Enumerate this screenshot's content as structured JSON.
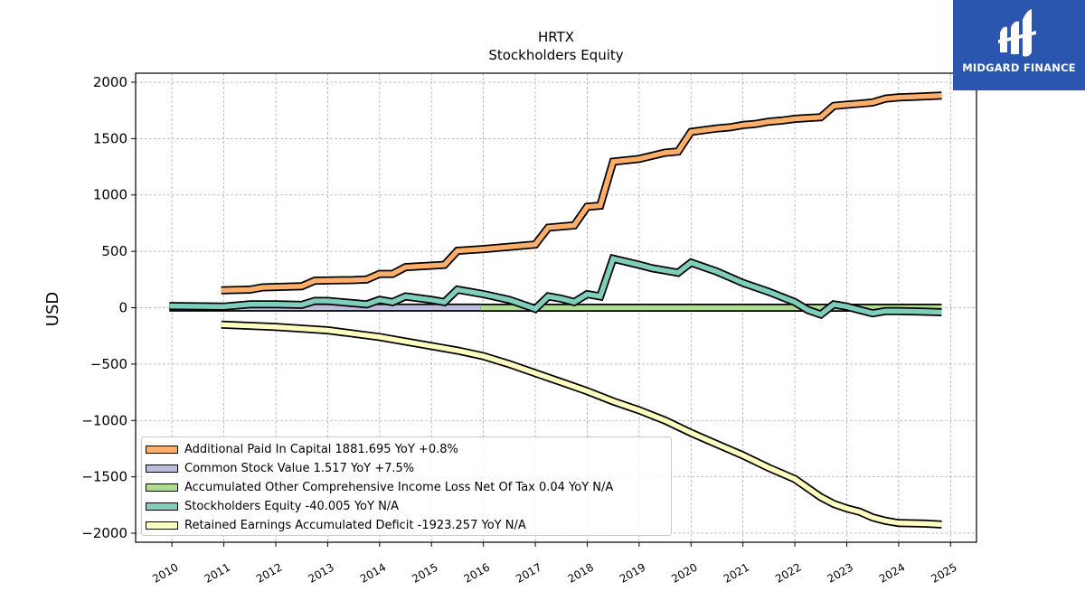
{
  "brand": {
    "name": "MIDGARD FINANCE",
    "logo_icon": "midgard-logo-icon",
    "color": "#2a56b0"
  },
  "chart_data": {
    "type": "line",
    "title": "HRTX",
    "subtitle": "Stockholders  Equity",
    "ylabel": "USD",
    "xlabel": "",
    "ylim": [
      -2080,
      2080
    ],
    "xlim": [
      2009.3,
      2025.5
    ],
    "yticks": [
      2000,
      1500,
      1000,
      500,
      0,
      -500,
      -1000,
      -1500,
      -2000
    ],
    "ytick_labels": [
      "2000",
      "1500",
      "1000",
      "500",
      "0",
      "−500",
      "−1000",
      "−1500",
      "−2000"
    ],
    "xticks": [
      2010,
      2011,
      2012,
      2013,
      2014,
      2015,
      2016,
      2017,
      2018,
      2019,
      2020,
      2021,
      2022,
      2023,
      2024,
      2025
    ],
    "xtick_labels": [
      "2010",
      "2011",
      "2012",
      "2013",
      "2014",
      "2015",
      "2016",
      "2017",
      "2018",
      "2019",
      "2020",
      "2021",
      "2022",
      "2023",
      "2024",
      "2025"
    ],
    "grid": true,
    "legend_position": "lower-left",
    "series": [
      {
        "name": "Additional Paid In Capital",
        "legend_label": "Additional Paid In Capital  1881.695 YoY +0.8%",
        "color": "#fdae6b",
        "x": [
          2010.95,
          2011.5,
          2011.75,
          2012.5,
          2012.75,
          2013.5,
          2013.75,
          2014.0,
          2014.25,
          2014.5,
          2015.25,
          2015.5,
          2016.0,
          2016.5,
          2017.0,
          2017.25,
          2017.75,
          2018.0,
          2018.25,
          2018.5,
          2019.0,
          2019.5,
          2019.75,
          2020.0,
          2020.5,
          2020.75,
          2021.0,
          2021.25,
          2021.5,
          2021.75,
          2022.0,
          2022.5,
          2022.75,
          2023.0,
          2023.25,
          2023.5,
          2023.75,
          2024.0,
          2024.5,
          2024.83
        ],
        "y": [
          155,
          160,
          180,
          190,
          240,
          245,
          250,
          300,
          300,
          360,
          380,
          505,
          520,
          540,
          560,
          710,
          730,
          895,
          905,
          1295,
          1320,
          1375,
          1385,
          1560,
          1590,
          1600,
          1620,
          1630,
          1650,
          1660,
          1675,
          1690,
          1790,
          1800,
          1810,
          1820,
          1855,
          1865,
          1875,
          1881.695
        ]
      },
      {
        "name": "Common Stock Value",
        "legend_label": "Common Stock Value  1.517 YoY +7.5%",
        "color": "#bcbddc",
        "x": [
          2009.95,
          2011.5,
          2012.5,
          2013.5,
          2014.5,
          2015.5,
          2015.95
        ],
        "y": [
          0.5,
          0.7,
          0.8,
          0.9,
          1.0,
          1.1,
          1.2
        ]
      },
      {
        "name": "Accumulated Other Comprehensive Income Loss Net Of Tax",
        "legend_label": "Accumulated Other Comprehensive Income Loss Net Of Tax  0.04 YoY N/A",
        "color": "#addd8e",
        "x": [
          2015.95,
          2018.0,
          2020.0,
          2022.0,
          2024.0,
          2024.83
        ],
        "y": [
          0.0,
          0.02,
          0.05,
          0.03,
          0.04,
          0.04
        ]
      },
      {
        "name": "Stockholders Equity",
        "legend_label": "Stockholders Equity  -40.005 YoY N/A",
        "color": "#7fcdbb",
        "x": [
          2009.95,
          2011.0,
          2011.5,
          2012.0,
          2012.5,
          2012.75,
          2013.0,
          2013.5,
          2013.75,
          2014.0,
          2014.25,
          2014.5,
          2015.0,
          2015.25,
          2015.5,
          2016.0,
          2016.5,
          2017.0,
          2017.25,
          2017.5,
          2017.75,
          2018.0,
          2018.25,
          2018.5,
          2019.0,
          2019.25,
          2019.5,
          2019.75,
          2020.0,
          2020.5,
          2021.0,
          2021.5,
          2022.0,
          2022.25,
          2022.5,
          2022.75,
          2023.0,
          2023.25,
          2023.5,
          2023.75,
          2024.0,
          2024.5,
          2024.83
        ],
        "y": [
          15,
          10,
          30,
          30,
          25,
          60,
          60,
          40,
          30,
          70,
          50,
          100,
          70,
          50,
          160,
          120,
          70,
          -10,
          100,
          80,
          50,
          120,
          100,
          435,
          380,
          350,
          330,
          310,
          400,
          320,
          220,
          140,
          50,
          -20,
          -60,
          30,
          10,
          -20,
          -50,
          -30,
          -30,
          -35,
          -40.005
        ]
      },
      {
        "name": "Retained Earnings Accumulated Deficit",
        "legend_label": "Retained Earnings Accumulated Deficit  -1923.257 YoY N/A",
        "color": "#ffffbf",
        "x": [
          2010.95,
          2012.0,
          2013.0,
          2013.5,
          2014.0,
          2014.5,
          2015.0,
          2015.5,
          2016.0,
          2016.5,
          2017.0,
          2017.5,
          2018.0,
          2018.5,
          2019.0,
          2019.5,
          2020.0,
          2020.5,
          2021.0,
          2021.5,
          2022.0,
          2022.25,
          2022.5,
          2022.75,
          2023.0,
          2023.25,
          2023.5,
          2023.75,
          2024.0,
          2024.5,
          2024.83
        ],
        "y": [
          -150,
          -170,
          -200,
          -230,
          -260,
          -300,
          -340,
          -380,
          -430,
          -500,
          -580,
          -660,
          -740,
          -830,
          -910,
          -1000,
          -1110,
          -1210,
          -1310,
          -1420,
          -1520,
          -1600,
          -1680,
          -1740,
          -1780,
          -1810,
          -1860,
          -1890,
          -1910,
          -1915,
          -1923.257
        ]
      }
    ]
  }
}
